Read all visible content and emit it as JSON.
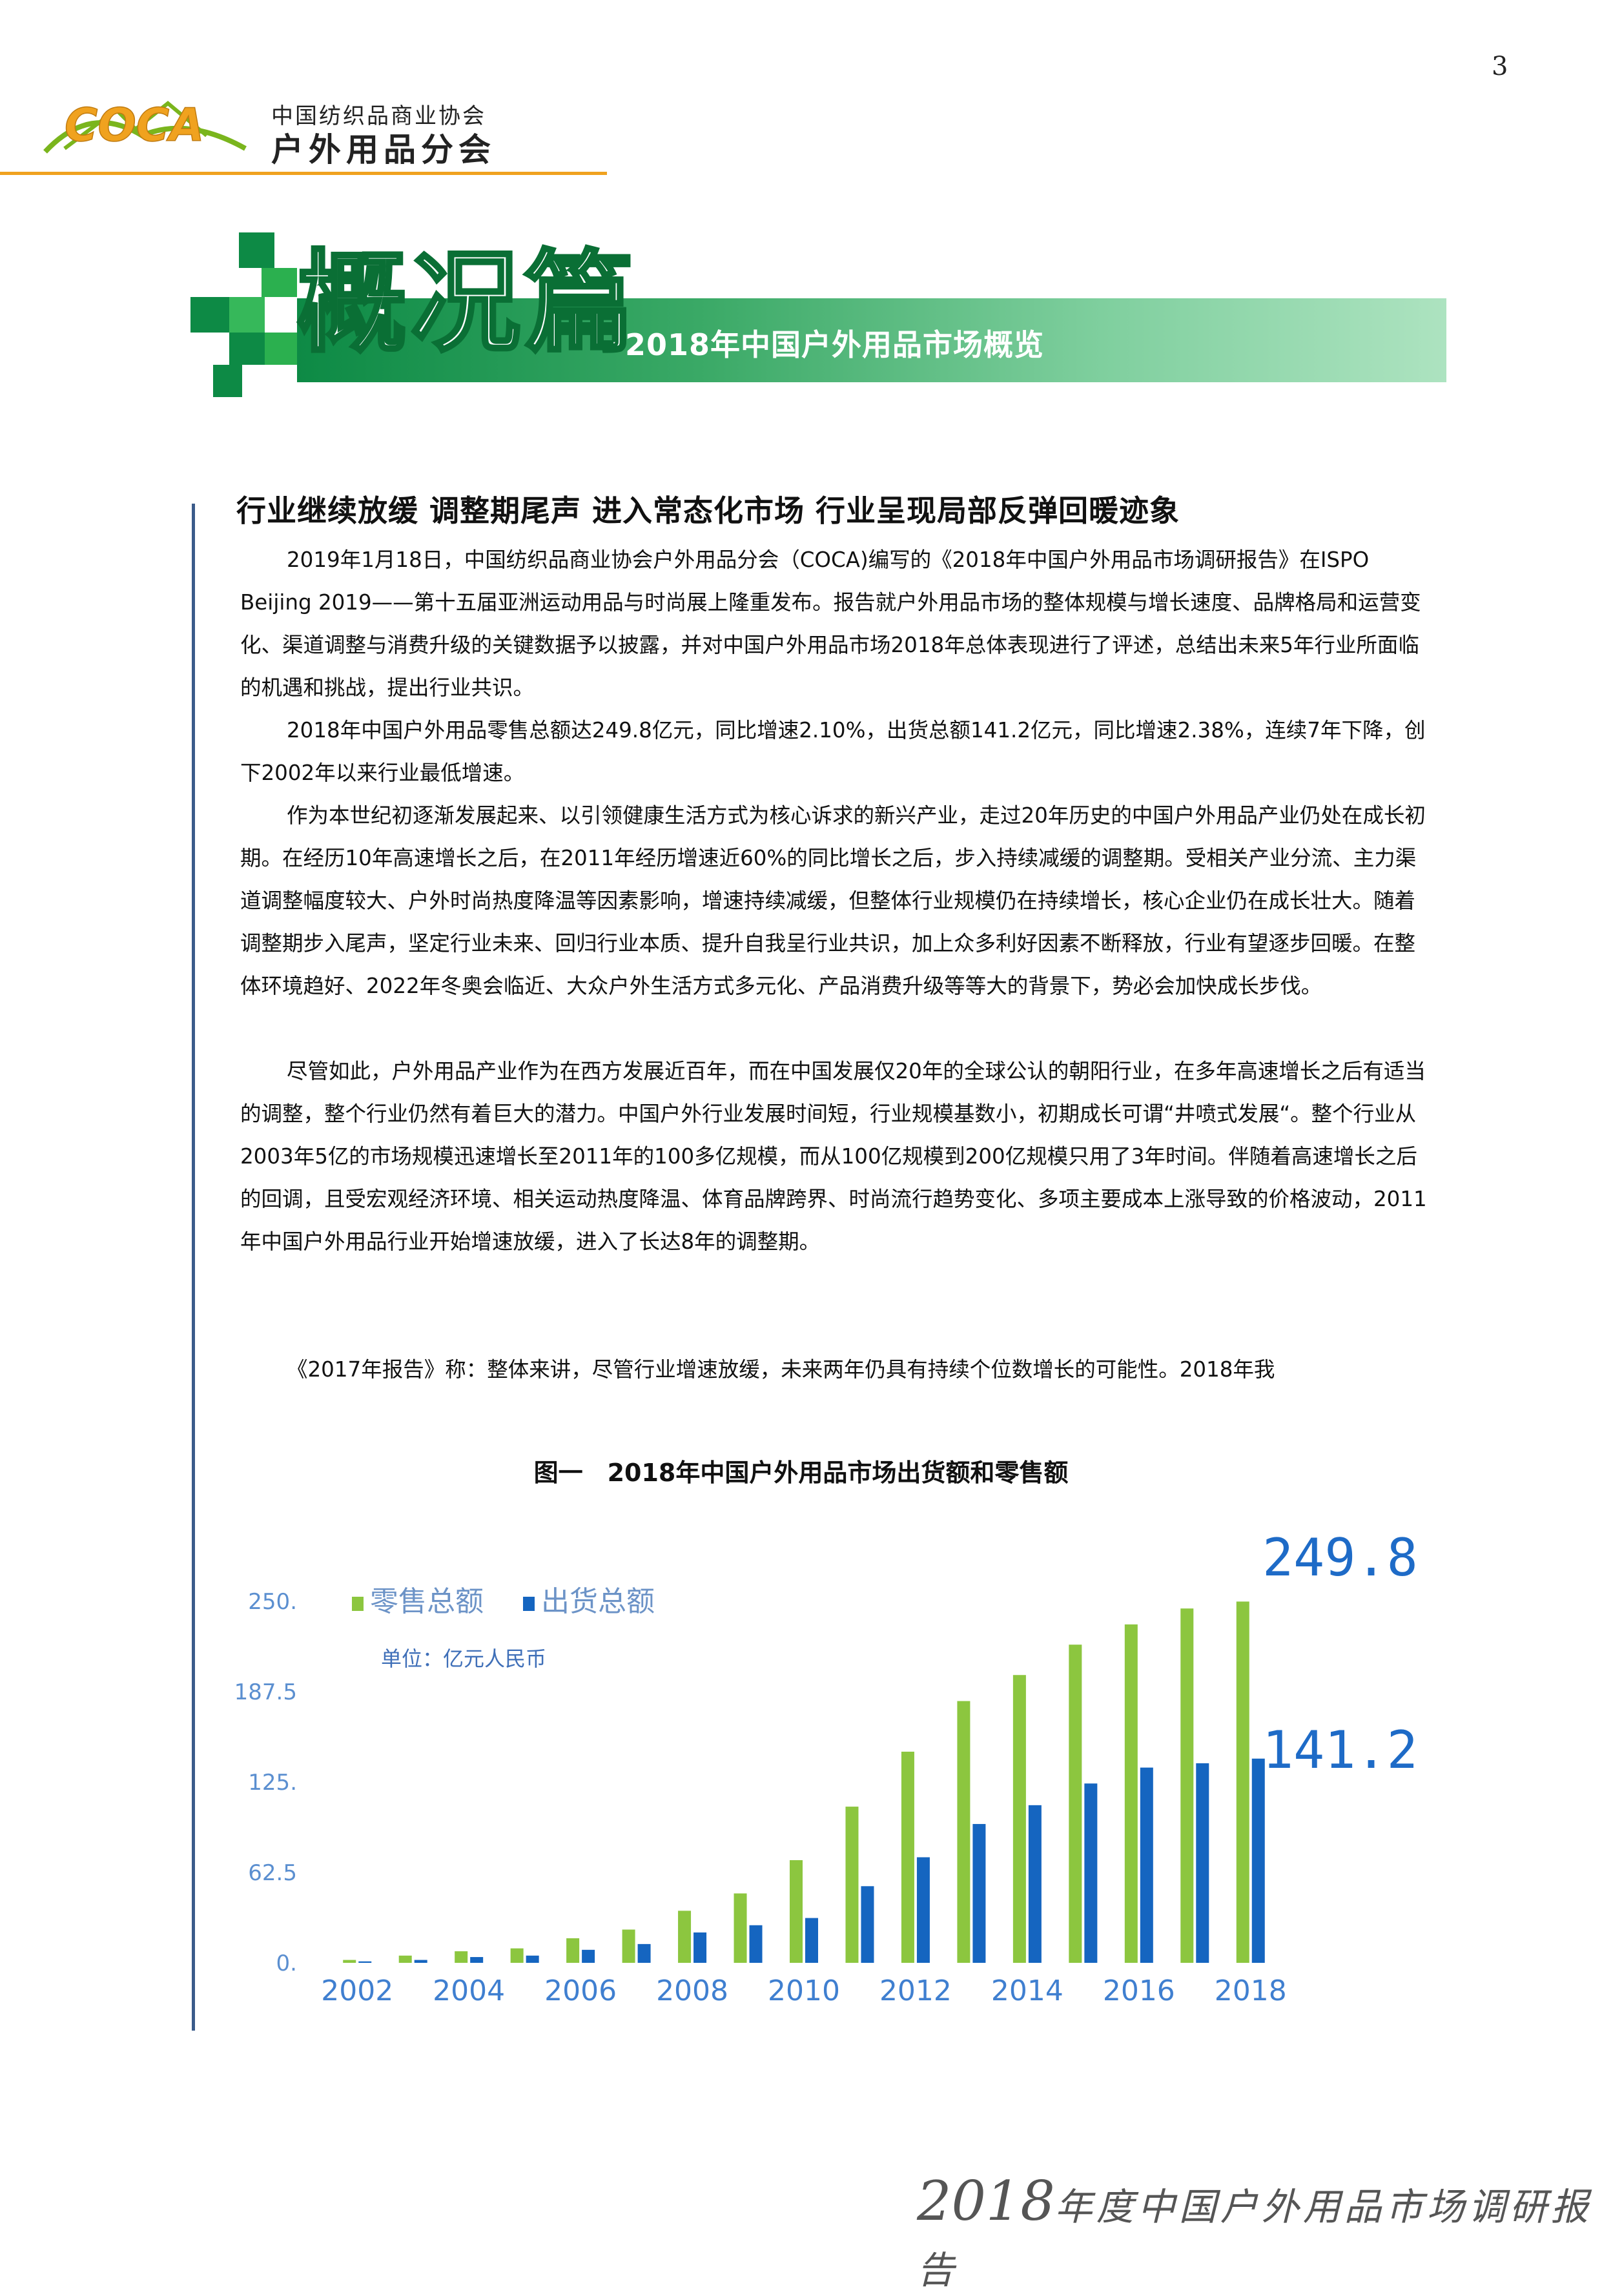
{
  "page_number": "3",
  "header": {
    "logo_text": "COCA",
    "org_line1": "中国纺织品商业协会",
    "org_line2": "户外用品分会",
    "colors": {
      "rule": "#f0a21f",
      "logo_green": "#7ab51d",
      "logo_orange": "#f0a21f"
    }
  },
  "banner": {
    "title": "概况篇",
    "subtitle": "2018年中国户外用品市场概览",
    "colors": {
      "dark": "#0d8a45",
      "light": "#ade3c0"
    }
  },
  "article": {
    "heading": "行业继续放缓 调整期尾声 进入常态化市场 行业呈现局部反弹回暖迹象",
    "paragraphs": [
      "2019年1月18日，中国纺织品商业协会户外用品分会（COCA)编写的《2018年中国户外用品市场调研报告》在ISPO Beijing 2019——第十五届亚洲运动用品与时尚展上隆重发布。报告就户外用品市场的整体规模与增长速度、品牌格局和运营变化、渠道调整与消费升级的关键数据予以披露，并对中国户外用品市场2018年总体表现进行了评述，总结出未来5年行业所面临的机遇和挑战，提出行业共识。",
      "2018年中国户外用品零售总额达249.8亿元，同比增速2.10%，出货总额141.2亿元，同比增速2.38%，连续7年下降，创下2002年以来行业最低增速。",
      "作为本世纪初逐渐发展起来、以引领健康生活方式为核心诉求的新兴产业，走过20年历史的中国户外用品产业仍处在成长初期。在经历10年高速增长之后，在2011年经历增速近60%的同比增长之后，步入持续减缓的调整期。受相关产业分流、主力渠道调整幅度较大、户外时尚热度降温等因素影响，增速持续减缓，但整体行业规模仍在持续增长，核心企业仍在成长壮大。随着调整期步入尾声，坚定行业未来、回归行业本质、提升自我呈行业共识，加上众多利好因素不断释放，行业有望逐步回暖。在整体环境趋好、2022年冬奥会临近、大众户外生活方式多元化、产品消费升级等等大的背景下，势必会加快成长步伐。",
      "尽管如此，户外用品产业作为在西方发展近百年，而在中国发展仅20年的全球公认的朝阳行业，在多年高速增长之后有适当的调整，整个行业仍然有着巨大的潜力。中国户外行业发展时间短，行业规模基数小，初期成长可谓“井喷式发展“。整个行业从2003年5亿的市场规模迅速增长至2011年的100多亿规模，而从100亿规模到200亿规模只用了3年时间。伴随着高速增长之后的回调，且受宏观经济环境、相关运动热度降温、体育品牌跨界、时尚流行趋势变化、多项主要成本上涨导致的价格波动，2011年中国户外用品行业开始增速放缓，进入了长达8年的调整期。",
      "《2017年报告》称：整体来讲，尽管行业增速放缓，未来两年仍具有持续个位数增长的可能性。2018年我"
    ]
  },
  "chart_data": {
    "type": "bar",
    "title": "图一　2018年中国户外用品市场出货额和零售额",
    "unit_label": "单位：亿元人民币",
    "categories": [
      "2002",
      "2003",
      "2004",
      "2005",
      "2006",
      "2007",
      "2008",
      "2009",
      "2010",
      "2011",
      "2012",
      "2013",
      "2014",
      "2015",
      "2016",
      "2017",
      "2018"
    ],
    "x_tick_labels": [
      "2002",
      "2004",
      "2006",
      "2008",
      "2010",
      "2012",
      "2014",
      "2016",
      "2018"
    ],
    "y_ticks": [
      "0.",
      "62.5",
      "125.",
      "187.5",
      "250."
    ],
    "ylim": [
      0,
      250
    ],
    "series": [
      {
        "name": "零售总额",
        "color": "#8cc63f",
        "values": [
          2,
          5,
          8,
          10,
          17,
          23,
          36,
          48,
          71,
          108,
          146,
          181,
          199,
          220,
          234,
          245,
          249.8
        ]
      },
      {
        "name": "出货总额",
        "color": "#1565c0",
        "values": [
          1,
          2,
          4,
          5,
          9,
          13,
          21,
          26,
          31,
          53,
          73,
          96,
          109,
          124,
          135,
          138,
          141.2
        ]
      }
    ],
    "annotations": [
      "249.8",
      "141.2"
    ],
    "grid": false,
    "legend": "top-left"
  },
  "footer": {
    "year": "2018",
    "text": "年度中国户外用品市场调研报告"
  }
}
